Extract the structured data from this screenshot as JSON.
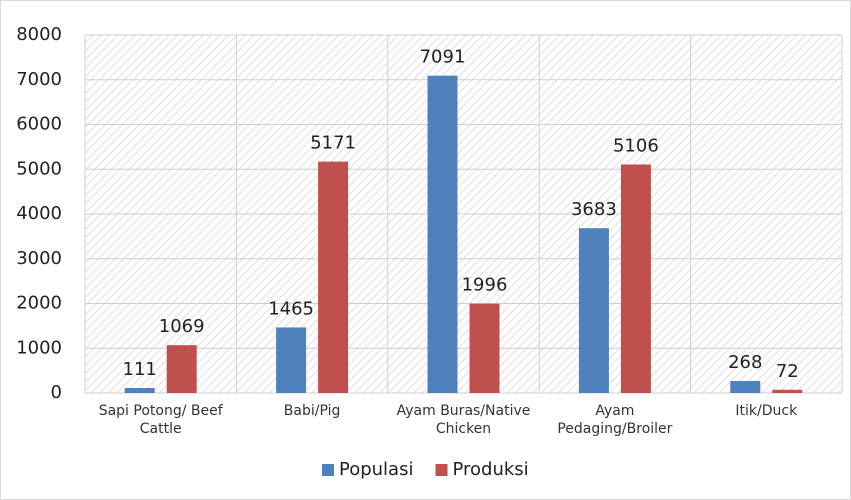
{
  "chart_data": {
    "type": "bar",
    "categories": [
      "Sapi Potong/ Beef Cattle",
      "Babi/Pig",
      "Ayam Buras/Native Chicken",
      "Ayam Pedaging/Broiler",
      "Itik/Duck"
    ],
    "series": [
      {
        "name": "Populasi",
        "color": "#4f81bd",
        "values": [
          111,
          1465,
          7091,
          3683,
          268
        ]
      },
      {
        "name": "Produksi",
        "color": "#c0504d",
        "values": [
          1069,
          5171,
          1996,
          5106,
          72
        ]
      }
    ],
    "ylim": [
      0,
      8000
    ],
    "yticks": [
      0,
      1000,
      2000,
      3000,
      4000,
      5000,
      6000,
      7000,
      8000
    ],
    "grid": true,
    "legend": "bottom"
  }
}
